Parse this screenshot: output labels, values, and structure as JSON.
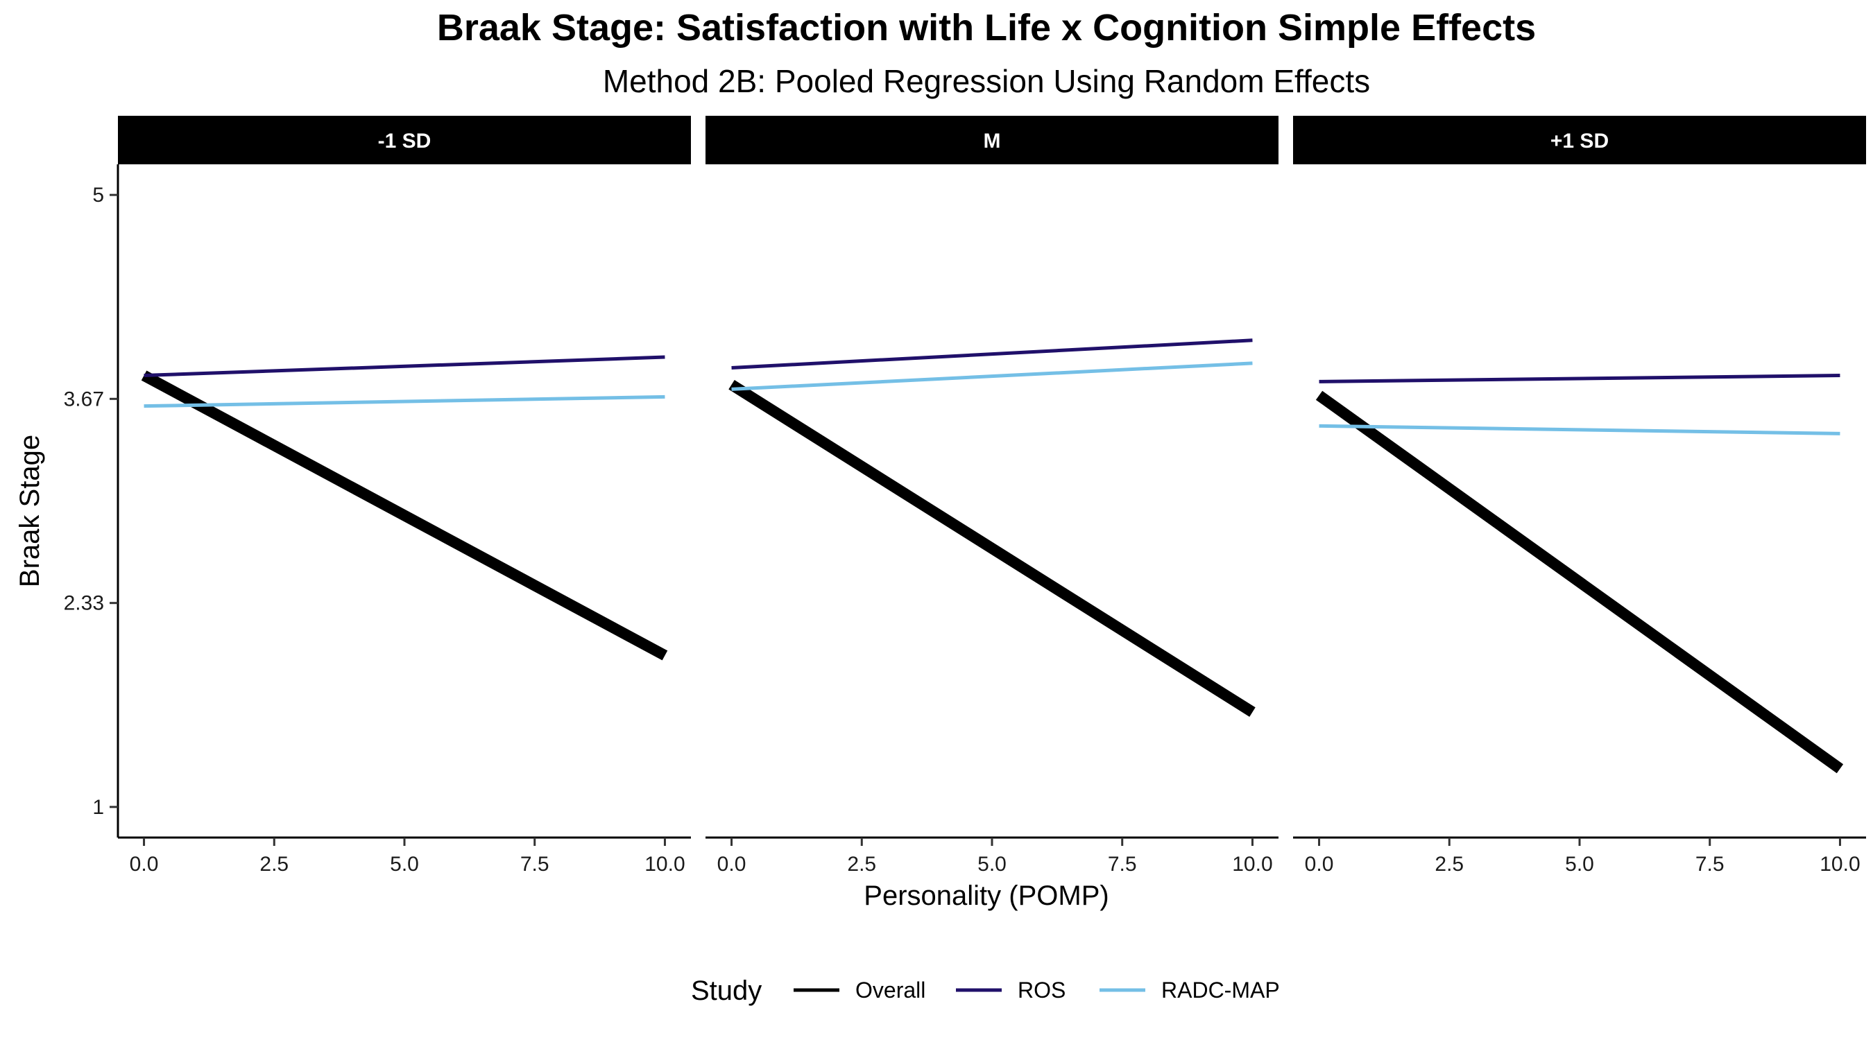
{
  "title": "Braak Stage: Satisfaction with Life x Cognition Simple Effects",
  "subtitle": "Method 2B: Pooled Regression Using Random Effects",
  "chart_data": {
    "type": "line",
    "facets": [
      "-1 SD",
      "M",
      "+1 SD"
    ],
    "xlabel": "Personality (POMP)",
    "ylabel": "Braak Stage",
    "xlim": [
      -0.5,
      10.5
    ],
    "ylim": [
      0.8,
      5.2
    ],
    "x_ticks": [
      0,
      2.5,
      5,
      7.5,
      10
    ],
    "x_tick_labels": [
      "0.0",
      "2.5",
      "5.0",
      "7.5",
      "10.0"
    ],
    "y_ticks": [
      1,
      2.333,
      3.667,
      5
    ],
    "y_tick_labels": [
      "1",
      "2.33",
      "3.67",
      "5"
    ],
    "legend": {
      "title": "Study",
      "position": "bottom",
      "entries": [
        "Overall",
        "ROS",
        "RADC-MAP"
      ]
    },
    "series": [
      {
        "name": "Overall",
        "color": "#000000",
        "line_weight": "thick",
        "panels": [
          {
            "facet": "-1 SD",
            "x": [
              0,
              10
            ],
            "y": [
              3.82,
              1.99
            ]
          },
          {
            "facet": "M",
            "x": [
              0,
              10
            ],
            "y": [
              3.76,
              1.62
            ]
          },
          {
            "facet": "+1 SD",
            "x": [
              0,
              10
            ],
            "y": [
              3.69,
              1.25
            ]
          }
        ]
      },
      {
        "name": "ROS",
        "color": "#20106a",
        "line_weight": "thin",
        "panels": [
          {
            "facet": "-1 SD",
            "x": [
              0,
              10
            ],
            "y": [
              3.82,
              3.94
            ]
          },
          {
            "facet": "M",
            "x": [
              0,
              10
            ],
            "y": [
              3.87,
              4.05
            ]
          },
          {
            "facet": "+1 SD",
            "x": [
              0,
              10
            ],
            "y": [
              3.78,
              3.82
            ]
          }
        ]
      },
      {
        "name": "RADC-MAP",
        "color": "#74bfe6",
        "line_weight": "thin",
        "panels": [
          {
            "facet": "-1 SD",
            "x": [
              0,
              10
            ],
            "y": [
              3.62,
              3.68
            ]
          },
          {
            "facet": "M",
            "x": [
              0,
              10
            ],
            "y": [
              3.73,
              3.9
            ]
          },
          {
            "facet": "+1 SD",
            "x": [
              0,
              10
            ],
            "y": [
              3.49,
              3.44
            ]
          }
        ]
      }
    ]
  }
}
